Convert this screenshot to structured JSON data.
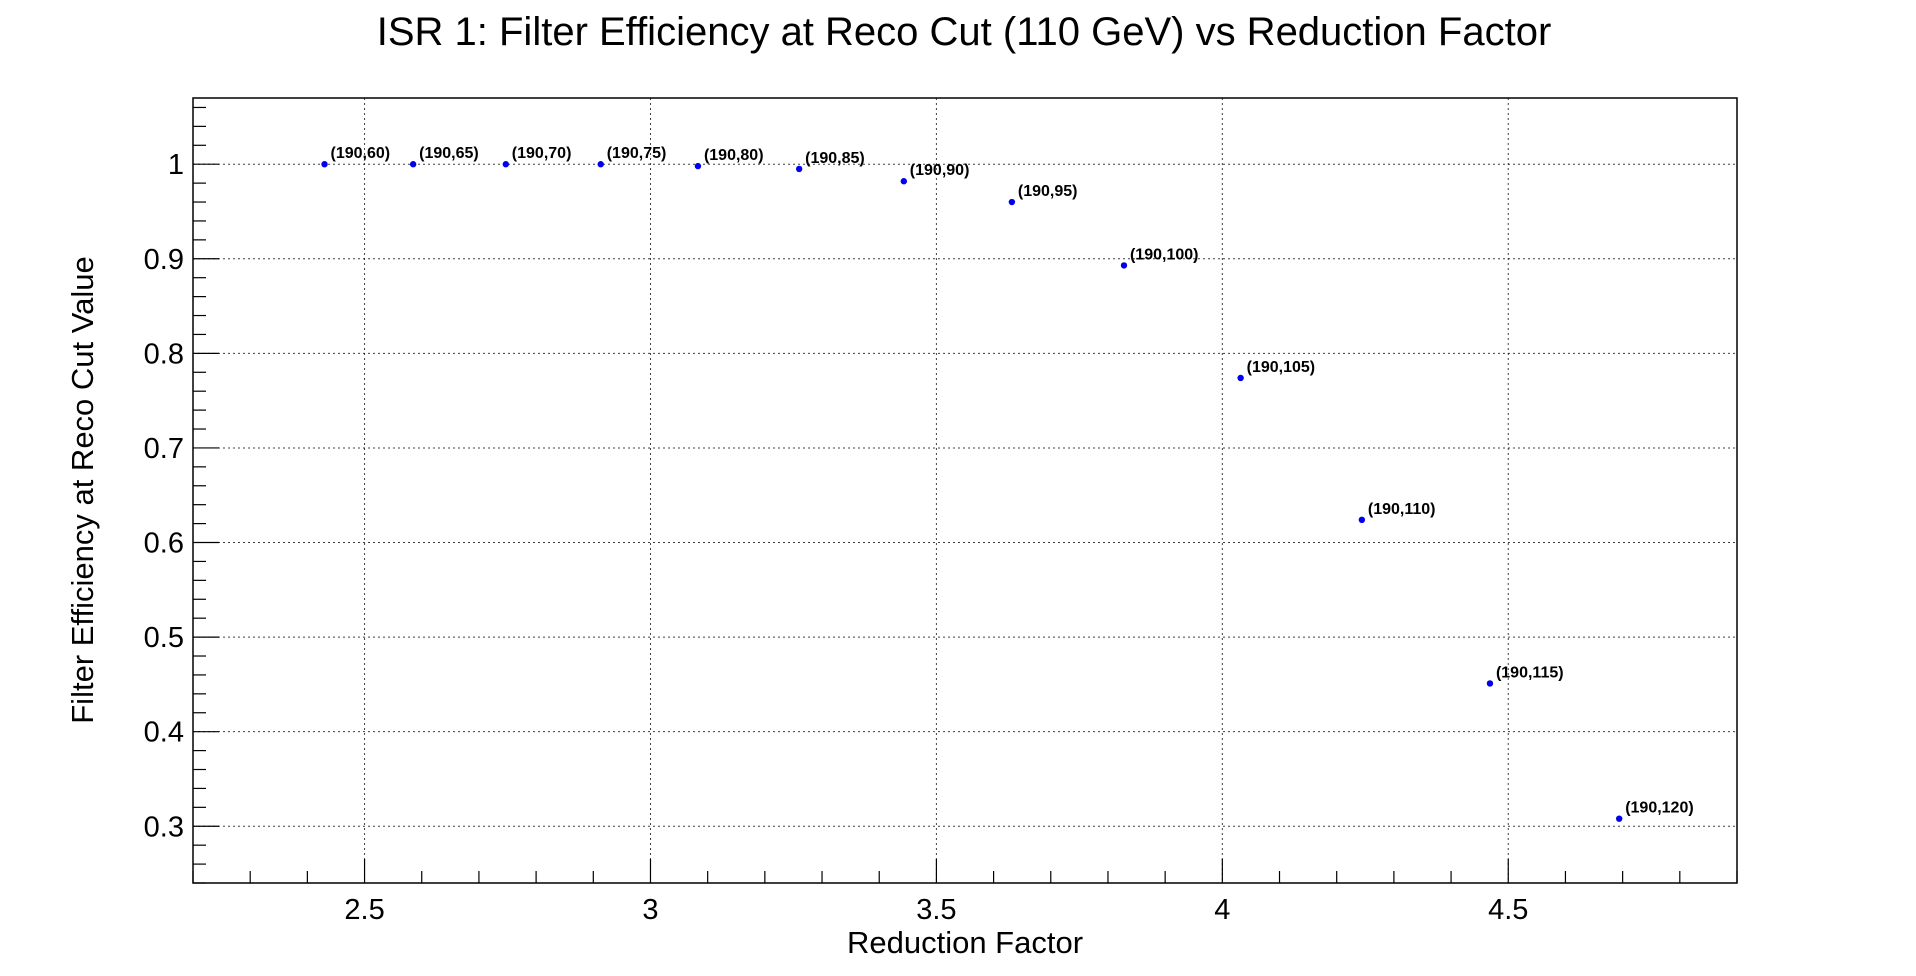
{
  "chart_data": {
    "type": "scatter",
    "title": "ISR 1: Filter Efficiency at Reco Cut (110 GeV) vs Reduction Factor",
    "xlabel": "Reduction Factor",
    "ylabel": "Filter Efficiency at Reco Cut Value",
    "xlim": [
      2.2,
      4.9
    ],
    "ylim": [
      0.24,
      1.07
    ],
    "xticks": [
      2.5,
      3,
      3.5,
      4,
      4.5
    ],
    "xtick_labels": [
      "2.5",
      "3",
      "3.5",
      "4",
      "4.5"
    ],
    "yticks": [
      0.3,
      0.4,
      0.5,
      0.6,
      0.7,
      0.8,
      0.9,
      1
    ],
    "ytick_labels": [
      "0.3",
      "0.4",
      "0.5",
      "0.6",
      "0.7",
      "0.8",
      "0.9",
      "1"
    ],
    "grid": true,
    "marker_color": "#0000ee",
    "points": [
      {
        "x": 2.43,
        "y": 1.0,
        "label": "(190,60)"
      },
      {
        "x": 2.585,
        "y": 1.0,
        "label": "(190,65)"
      },
      {
        "x": 2.747,
        "y": 1.0,
        "label": "(190,70)"
      },
      {
        "x": 2.913,
        "y": 1.0,
        "label": "(190,75)"
      },
      {
        "x": 3.083,
        "y": 0.998,
        "label": "(190,80)"
      },
      {
        "x": 3.26,
        "y": 0.995,
        "label": "(190,85)"
      },
      {
        "x": 3.443,
        "y": 0.982,
        "label": "(190,90)"
      },
      {
        "x": 3.632,
        "y": 0.96,
        "label": "(190,95)"
      },
      {
        "x": 3.828,
        "y": 0.893,
        "label": "(190,100)"
      },
      {
        "x": 4.032,
        "y": 0.774,
        "label": "(190,105)"
      },
      {
        "x": 4.244,
        "y": 0.624,
        "label": "(190,110)"
      },
      {
        "x": 4.468,
        "y": 0.451,
        "label": "(190,115)"
      },
      {
        "x": 4.694,
        "y": 0.308,
        "label": "(190,120)"
      }
    ]
  }
}
